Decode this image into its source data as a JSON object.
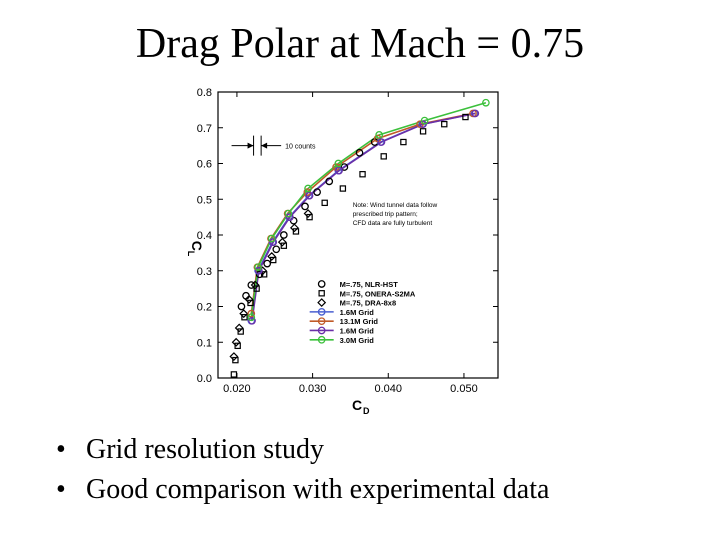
{
  "slide": {
    "title": "Drag Polar at Mach = 0.75",
    "bullets": [
      "Grid resolution study",
      "Good comparison with experimental data"
    ]
  },
  "chart_data": {
    "type": "line",
    "xlabel": "C",
    "xlabel_sub": "D",
    "ylabel": "C",
    "ylabel_sub": "L",
    "xlim": [
      0.0175,
      0.0545
    ],
    "ylim": [
      0.0,
      0.8
    ],
    "xticks": [
      0.02,
      0.03,
      0.04,
      0.05
    ],
    "xtick_labels": [
      "0.020",
      "0.030",
      "0.040",
      "0.050"
    ],
    "yticks": [
      0.0,
      0.1,
      0.2,
      0.3,
      0.4,
      0.5,
      0.6,
      0.7,
      0.8
    ],
    "ytick_labels": [
      "0.0",
      "0.1",
      "0.2",
      "0.3",
      "0.4",
      "0.5",
      "0.6",
      "0.7",
      "0.8"
    ],
    "annotation_counts": "10 counts",
    "note_lines": [
      "Note: Wind tunnel data follow",
      "prescribed trip pattern;",
      "CFD data are fully turbulent"
    ],
    "series": [
      {
        "name": "M=.75, NLR-HST",
        "kind": "exp",
        "marker": "circle",
        "color": "#000000",
        "x": [
          0.0206,
          0.0212,
          0.0219,
          0.023,
          0.024,
          0.0252,
          0.0262,
          0.0275,
          0.029,
          0.0306,
          0.0322,
          0.0342,
          0.0362,
          0.0382
        ],
        "y": [
          0.2,
          0.23,
          0.26,
          0.29,
          0.32,
          0.36,
          0.4,
          0.44,
          0.48,
          0.52,
          0.55,
          0.59,
          0.63,
          0.66
        ]
      },
      {
        "name": "M=.75, ONERA-S2MA",
        "kind": "exp",
        "marker": "square",
        "color": "#000000",
        "x": [
          0.0196,
          0.0198,
          0.0201,
          0.0205,
          0.021,
          0.0218,
          0.0226,
          0.0236,
          0.0248,
          0.0262,
          0.0278,
          0.0296,
          0.0316,
          0.034,
          0.0366,
          0.0394,
          0.042,
          0.0446,
          0.0474,
          0.0502
        ],
        "y": [
          0.01,
          0.05,
          0.09,
          0.13,
          0.17,
          0.21,
          0.25,
          0.29,
          0.33,
          0.37,
          0.41,
          0.45,
          0.49,
          0.53,
          0.57,
          0.62,
          0.66,
          0.69,
          0.71,
          0.73
        ]
      },
      {
        "name": "M=.75, DRA-8x8",
        "kind": "exp",
        "marker": "diamond",
        "color": "#000000",
        "x": [
          0.0196,
          0.0199,
          0.0203,
          0.0209,
          0.0216,
          0.0224,
          0.0234,
          0.0246,
          0.026,
          0.0276,
          0.0294
        ],
        "y": [
          0.06,
          0.1,
          0.14,
          0.18,
          0.22,
          0.26,
          0.3,
          0.34,
          0.38,
          0.42,
          0.46
        ]
      },
      {
        "name": "1.6M Grid",
        "kind": "cfd",
        "marker": "circle",
        "color": "#4a5fd0",
        "x": [
          0.0219,
          0.0228,
          0.0247,
          0.0269,
          0.0295,
          0.0334,
          0.039,
          0.0445,
          0.0514
        ],
        "y": [
          0.16,
          0.3,
          0.38,
          0.45,
          0.51,
          0.58,
          0.66,
          0.71,
          0.74
        ]
      },
      {
        "name": "13.1M Grid",
        "kind": "cfd",
        "marker": "circle",
        "color": "#c05a28",
        "x": [
          0.0219,
          0.0227,
          0.0245,
          0.0267,
          0.0293,
          0.0331,
          0.0386,
          0.0442,
          0.0512
        ],
        "y": [
          0.18,
          0.31,
          0.39,
          0.46,
          0.52,
          0.59,
          0.67,
          0.71,
          0.74
        ]
      },
      {
        "name": "1.6M Grid",
        "kind": "cfd",
        "marker": "circle",
        "color": "#6a2fa8",
        "x": [
          0.022,
          0.0229,
          0.0248,
          0.027,
          0.0296,
          0.0335,
          0.0391,
          0.0446,
          0.0515
        ],
        "y": [
          0.16,
          0.3,
          0.38,
          0.45,
          0.51,
          0.58,
          0.66,
          0.71,
          0.74
        ]
      },
      {
        "name": "3.0M Grid",
        "kind": "cfd",
        "marker": "circle",
        "color": "#3bc03b",
        "x": [
          0.0219,
          0.0228,
          0.0246,
          0.0268,
          0.0294,
          0.0334,
          0.0388,
          0.0448,
          0.0529
        ],
        "y": [
          0.17,
          0.31,
          0.39,
          0.46,
          0.53,
          0.6,
          0.68,
          0.72,
          0.77
        ]
      }
    ]
  }
}
